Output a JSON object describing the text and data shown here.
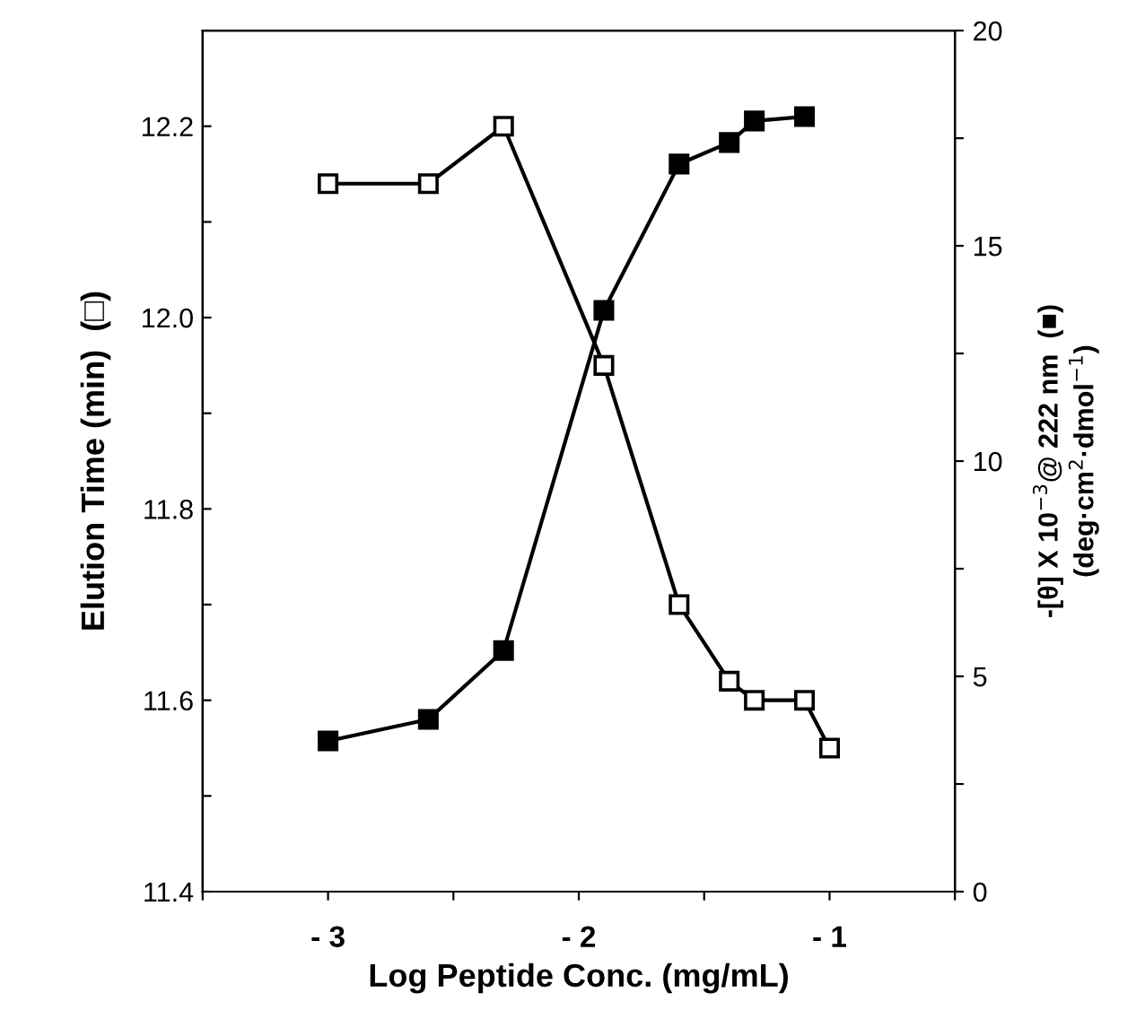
{
  "chart_data": {
    "type": "line",
    "xlabel": "Log Peptide Conc. (mg/mL)",
    "ylabel": "Elution Time (min)  (□)",
    "y2label": "-[θ] X 10$^{−3}$@ 222 nm  (■)\n(deg·cm$^{2}$·dmol$^{−1}$)",
    "xlim": [
      -3.5,
      -0.5
    ],
    "xticks": [
      {
        "value": -3.5,
        "label": null
      },
      {
        "value": -3,
        "label": "- 3"
      },
      {
        "value": -2.5,
        "label": null
      },
      {
        "value": -2,
        "label": "- 2"
      },
      {
        "value": -1.5,
        "label": null
      },
      {
        "value": -1,
        "label": "- 1"
      },
      {
        "value": -0.5,
        "label": null
      }
    ],
    "ylim": [
      11.4,
      12.3
    ],
    "yticks": [
      11.4,
      {
        "value": 11.5,
        "label": null
      },
      11.6,
      {
        "value": 11.7,
        "label": null
      },
      11.8,
      {
        "value": 11.9,
        "label": null
      },
      {
        "value": 12,
        "label": "12.0"
      },
      {
        "value": 12.1,
        "label": null
      },
      12.2
    ],
    "y2lim": [
      0,
      20
    ],
    "y2ticks": [
      0,
      {
        "value": 2.5,
        "label": null
      },
      5,
      {
        "value": 7.5,
        "label": null
      },
      10,
      {
        "value": 12.5,
        "label": null
      },
      15,
      {
        "value": 17.5,
        "label": null
      },
      20
    ],
    "marker": "square",
    "line_style": "solid",
    "grid": false,
    "legend": false,
    "series": [
      {
        "color": "#000000",
        "x": [
          -3,
          -2.6,
          -2.3,
          -1.9,
          -1.6,
          -1.4,
          -1.3,
          -1.1,
          -1.0
        ],
        "values": [
          12.14,
          12.14,
          12.2,
          11.95,
          11.7,
          11.62,
          11.6,
          11.6,
          11.55
        ]
      },
      {
        "color": "#000000",
        "axis": "y2",
        "x": [
          -3,
          -2.6,
          -2.3,
          -1.9,
          -1.6,
          -1.4,
          -1.3,
          -1.1
        ],
        "values": [
          3.5,
          4.0,
          5.6,
          13.5,
          16.9,
          17.4,
          17.9,
          18.0
        ]
      }
    ]
  }
}
